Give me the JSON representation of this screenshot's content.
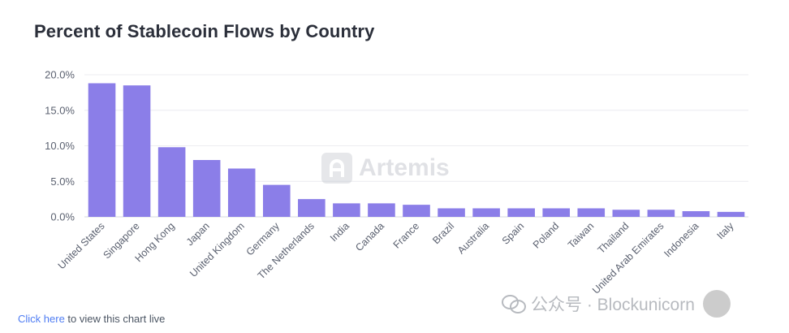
{
  "page": {
    "title": "Percent of Stablecoin Flows by Country",
    "footer_link": "Click here",
    "footer_text": " to view this chart live",
    "watermark_text": "Artemis",
    "wechat_text": "公众号 · Blockunicorn"
  },
  "chart_data": {
    "type": "bar",
    "title": "Percent of Stablecoin Flows by Country",
    "xlabel": "",
    "ylabel": "",
    "ylim": [
      0,
      20
    ],
    "yticks": [
      "0.0%",
      "5.0%",
      "10.0%",
      "15.0%",
      "20.0%"
    ],
    "ytick_values": [
      0,
      5,
      10,
      15,
      20
    ],
    "grid": true,
    "bar_color": "#8b7ee8",
    "categories": [
      "United States",
      "Singapore",
      "Hong Kong",
      "Japan",
      "United Kingdom",
      "Germany",
      "The Netherlands",
      "India",
      "Canada",
      "France",
      "Brazil",
      "Australia",
      "Spain",
      "Poland",
      "Taiwan",
      "Thailand",
      "United Arab Emirates",
      "Indonesia",
      "Italy"
    ],
    "values": [
      18.8,
      18.5,
      9.8,
      8.0,
      6.8,
      4.5,
      2.5,
      1.9,
      1.9,
      1.7,
      1.2,
      1.2,
      1.2,
      1.2,
      1.2,
      1.0,
      1.0,
      0.8,
      0.7
    ]
  }
}
